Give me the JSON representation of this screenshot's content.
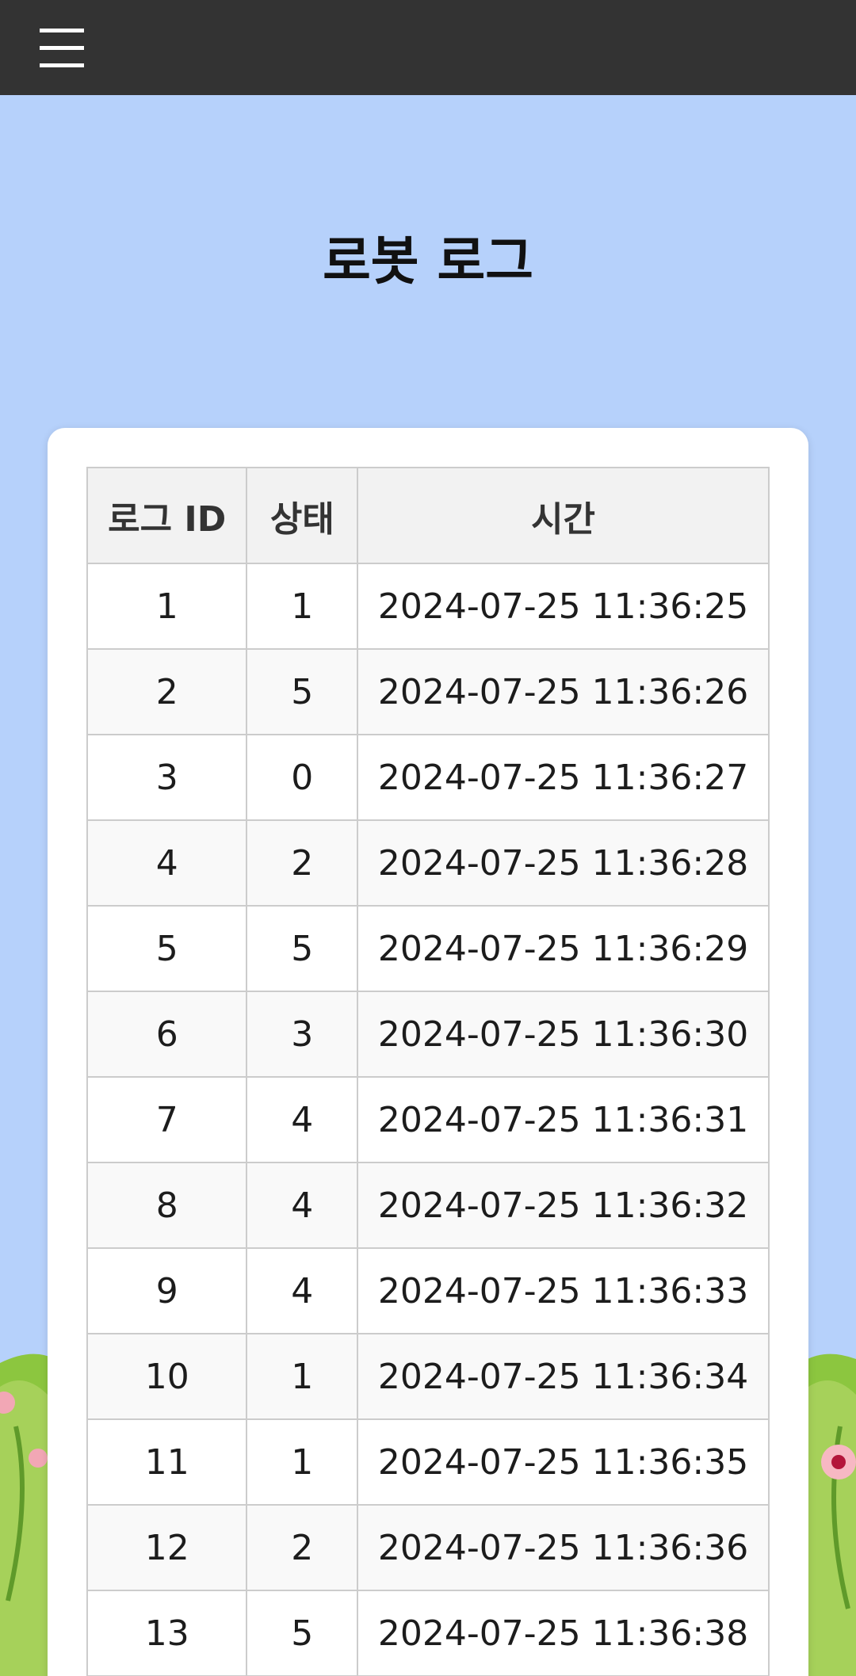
{
  "header": {
    "menu_icon": "hamburger-menu-icon"
  },
  "page": {
    "title": "로봇 로그"
  },
  "table": {
    "columns": [
      "로그 ID",
      "상태",
      "시간"
    ],
    "rows": [
      {
        "id": "1",
        "status": "1",
        "time": "2024-07-25 11:36:25"
      },
      {
        "id": "2",
        "status": "5",
        "time": "2024-07-25 11:36:26"
      },
      {
        "id": "3",
        "status": "0",
        "time": "2024-07-25 11:36:27"
      },
      {
        "id": "4",
        "status": "2",
        "time": "2024-07-25 11:36:28"
      },
      {
        "id": "5",
        "status": "5",
        "time": "2024-07-25 11:36:29"
      },
      {
        "id": "6",
        "status": "3",
        "time": "2024-07-25 11:36:30"
      },
      {
        "id": "7",
        "status": "4",
        "time": "2024-07-25 11:36:31"
      },
      {
        "id": "8",
        "status": "4",
        "time": "2024-07-25 11:36:32"
      },
      {
        "id": "9",
        "status": "4",
        "time": "2024-07-25 11:36:33"
      },
      {
        "id": "10",
        "status": "1",
        "time": "2024-07-25 11:36:34"
      },
      {
        "id": "11",
        "status": "1",
        "time": "2024-07-25 11:36:35"
      },
      {
        "id": "12",
        "status": "2",
        "time": "2024-07-25 11:36:36"
      },
      {
        "id": "13",
        "status": "5",
        "time": "2024-07-25 11:36:38"
      }
    ]
  },
  "colors": {
    "background": "#b6d1fb",
    "topbar": "#333333",
    "card": "#ffffff",
    "header_cell": "#f2f2f2",
    "grass": "#8cc63f"
  }
}
